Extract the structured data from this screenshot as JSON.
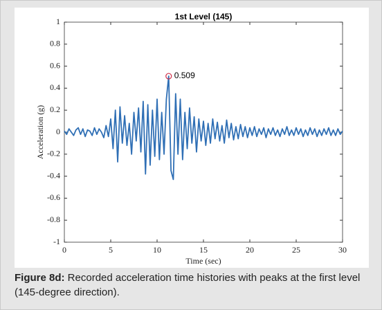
{
  "chart_data": {
    "type": "line",
    "title": "1st Level (145)",
    "xlabel": "Time (sec)",
    "ylabel": "Acceleration (g)",
    "x": [
      0,
      0.25,
      0.5,
      0.75,
      1,
      1.25,
      1.5,
      1.75,
      2,
      2.25,
      2.5,
      2.75,
      3,
      3.25,
      3.5,
      3.75,
      4,
      4.25,
      4.5,
      4.75,
      5,
      5.25,
      5.5,
      5.75,
      6,
      6.25,
      6.5,
      6.75,
      7,
      7.25,
      7.5,
      7.75,
      8,
      8.25,
      8.5,
      8.75,
      9,
      9.25,
      9.5,
      9.75,
      10,
      10.25,
      10.5,
      10.75,
      11,
      11.25,
      11.5,
      11.75,
      12,
      12.25,
      12.5,
      12.75,
      13,
      13.25,
      13.5,
      13.75,
      14,
      14.25,
      14.5,
      14.75,
      15,
      15.25,
      15.5,
      15.75,
      16,
      16.25,
      16.5,
      16.75,
      17,
      17.25,
      17.5,
      17.75,
      18,
      18.25,
      18.5,
      18.75,
      19,
      19.25,
      19.5,
      19.75,
      20,
      20.25,
      20.5,
      20.75,
      21,
      21.25,
      21.5,
      21.75,
      22,
      22.25,
      22.5,
      22.75,
      23,
      23.25,
      23.5,
      23.75,
      24,
      24.25,
      24.5,
      24.75,
      25,
      25.25,
      25.5,
      25.75,
      26,
      26.25,
      26.5,
      26.75,
      27,
      27.25,
      27.5,
      27.75,
      28,
      28.25,
      28.5,
      28.75,
      29,
      29.25,
      29.5,
      29.75,
      30
    ],
    "series": [
      {
        "name": "Acceleration",
        "color": "#2f6fb5",
        "values": [
          0.01,
          -0.02,
          0.03,
          0.0,
          -0.03,
          0.02,
          0.04,
          -0.02,
          0.03,
          -0.04,
          0.02,
          0.01,
          -0.03,
          0.04,
          -0.02,
          0.03,
          0.0,
          -0.05,
          0.06,
          -0.04,
          0.12,
          -0.15,
          0.2,
          -0.27,
          0.23,
          -0.1,
          0.15,
          -0.12,
          0.08,
          -0.2,
          0.18,
          -0.08,
          0.22,
          -0.18,
          0.28,
          -0.38,
          0.25,
          -0.3,
          0.2,
          -0.22,
          0.3,
          -0.25,
          0.18,
          -0.2,
          0.3,
          0.509,
          -0.35,
          -0.43,
          0.35,
          -0.2,
          0.3,
          -0.25,
          0.18,
          -0.15,
          0.22,
          -0.1,
          0.14,
          -0.18,
          0.12,
          -0.08,
          0.1,
          -0.12,
          0.08,
          -0.1,
          0.12,
          -0.06,
          0.09,
          -0.08,
          0.06,
          -0.1,
          0.11,
          -0.05,
          0.08,
          -0.07,
          0.05,
          -0.06,
          0.07,
          -0.04,
          0.05,
          -0.05,
          0.04,
          -0.03,
          0.05,
          -0.04,
          0.03,
          -0.02,
          0.04,
          -0.05,
          0.03,
          -0.02,
          0.04,
          -0.03,
          0.02,
          -0.04,
          0.03,
          -0.02,
          0.05,
          -0.03,
          0.02,
          -0.03,
          0.04,
          -0.02,
          0.03,
          -0.04,
          0.02,
          -0.03,
          0.04,
          -0.02,
          0.03,
          -0.04,
          0.02,
          -0.03,
          0.03,
          -0.02,
          0.04,
          -0.03,
          0.02,
          -0.03,
          0.03,
          -0.02,
          0.01
        ]
      }
    ],
    "xlim": [
      0,
      30
    ],
    "xticks": [
      0,
      5,
      10,
      15,
      20,
      25,
      30
    ],
    "ylim": [
      -1,
      1
    ],
    "yticks": [
      -1,
      -0.8,
      -0.6,
      -0.4,
      -0.2,
      0,
      0.2,
      0.4,
      0.6,
      0.8,
      1
    ],
    "annotations": [
      {
        "label": "0.509",
        "x": 11.25,
        "y": 0.509,
        "color": "#d0304a"
      }
    ]
  },
  "caption": {
    "label": "Figure 8d:",
    "text": " Recorded acceleration time histories with peaks at the first level (145-degree direction)."
  }
}
